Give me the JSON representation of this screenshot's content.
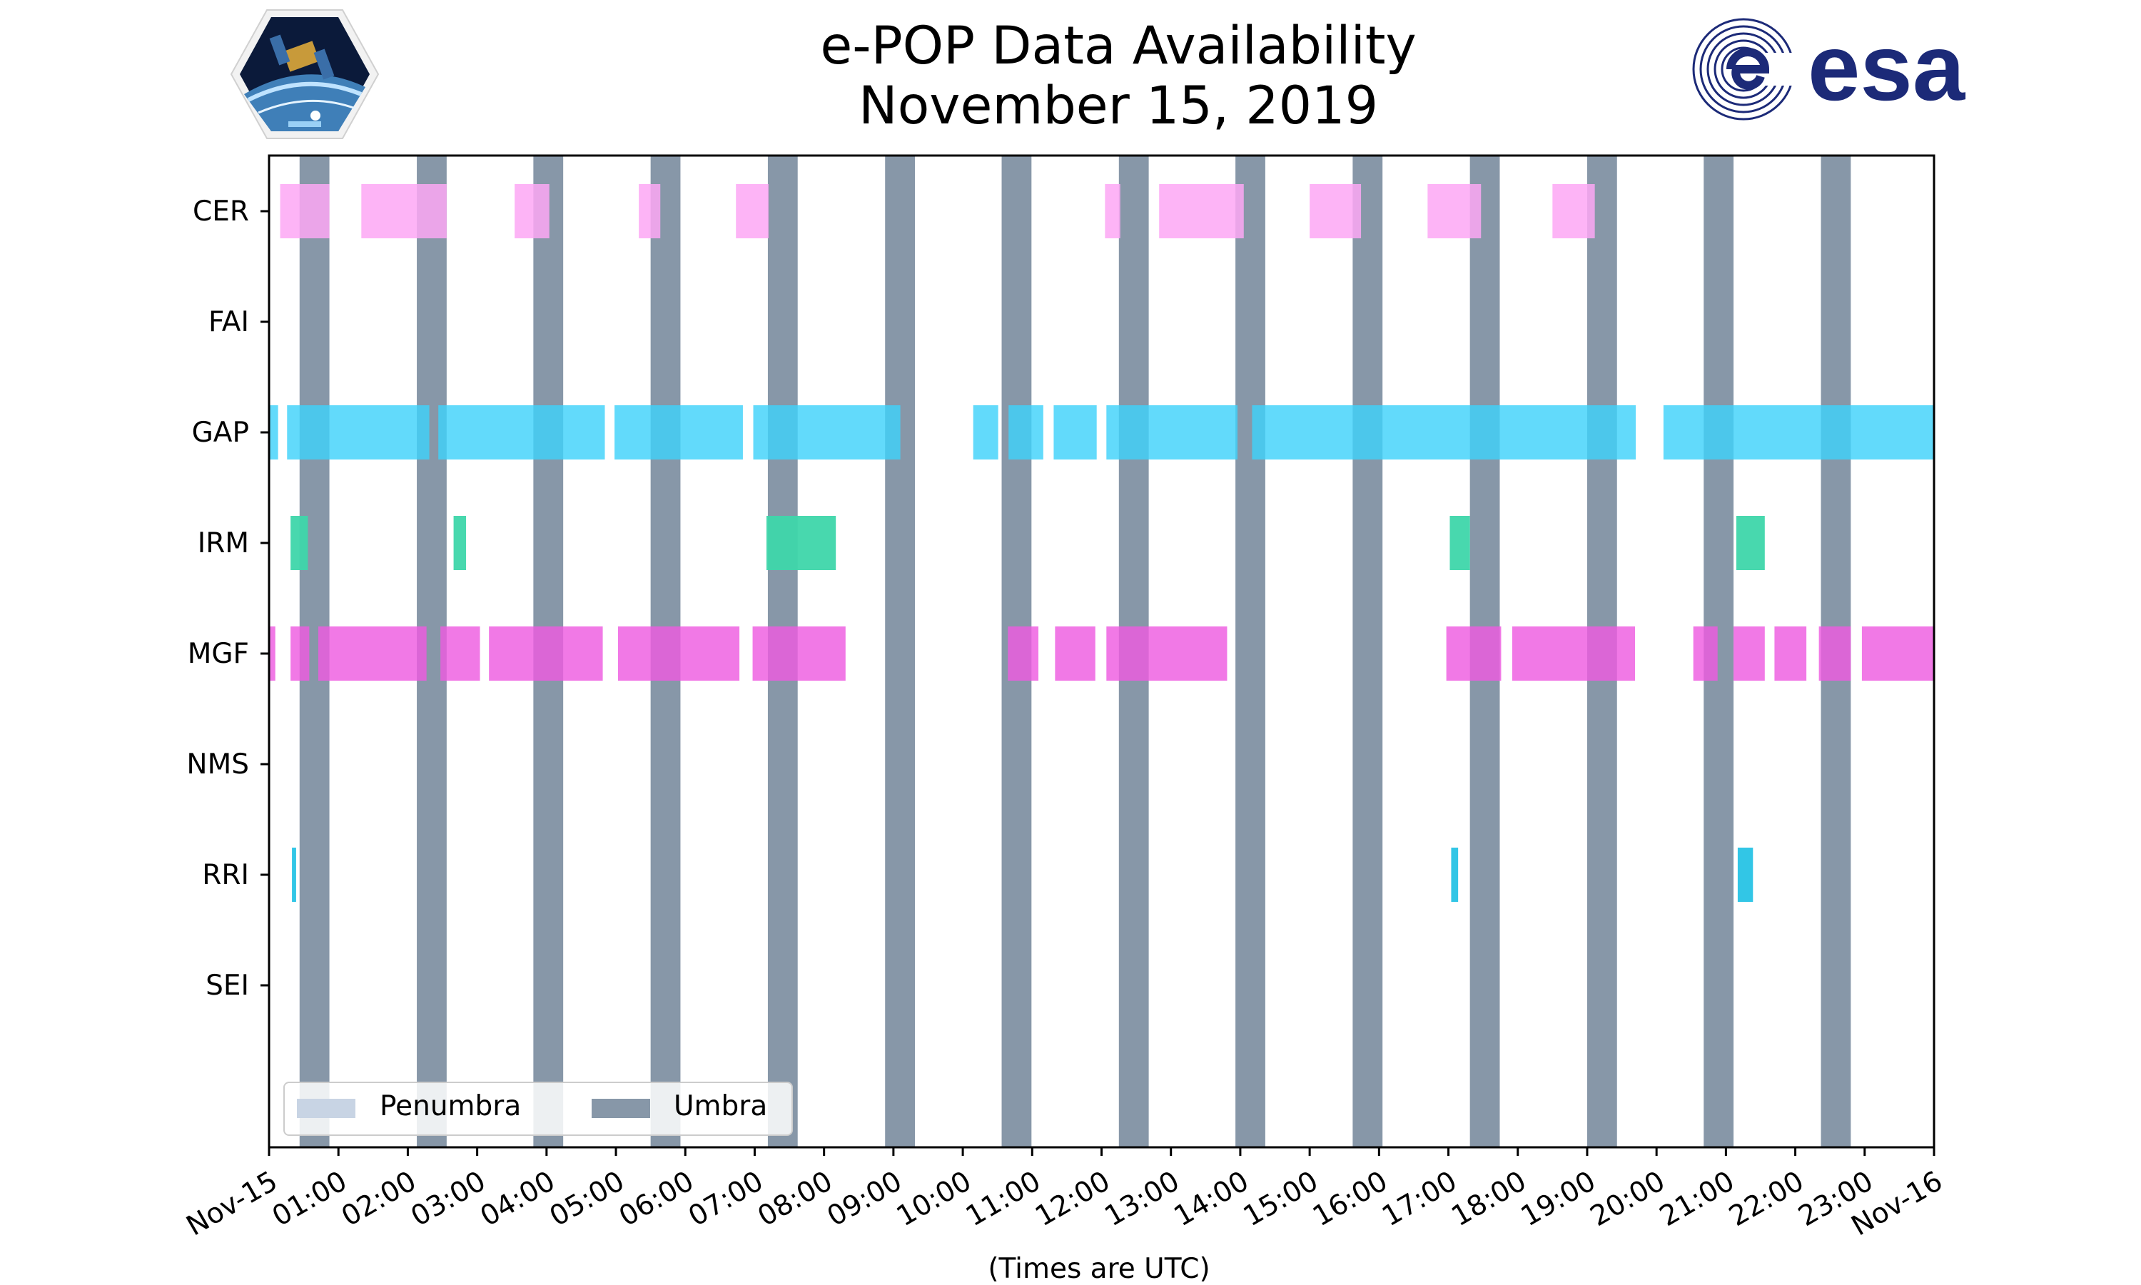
{
  "title_line1": "e-POP Data Availability",
  "title_line2": "November 15, 2019",
  "logos": {
    "left": {
      "name": "CASSIOPE",
      "icon": "cassiope-mission-badge"
    },
    "right": {
      "name": "esa",
      "icon": "esa-logo",
      "color": "#1c2a78"
    }
  },
  "colors": {
    "umbra": "#8797a8",
    "penumbra": "#c8d4e4",
    "CER": "#fda7f4",
    "GAP": "#5fd8f8",
    "GAP_dark": "#40d2fa",
    "IRM": "#3ed6aa",
    "MGF": "#f279e6",
    "MGF_dark": "#ee5ce0",
    "RRI": "#32c6e6"
  },
  "chart_data": {
    "type": "timeline",
    "title": "e-POP Data Availability November 15, 2019",
    "xlabel": "(Times are UTC)",
    "ylabel": "",
    "xlim_hours": [
      0,
      24
    ],
    "x_tick_labels": [
      "Nov-15",
      "01:00",
      "02:00",
      "03:00",
      "04:00",
      "05:00",
      "06:00",
      "07:00",
      "08:00",
      "09:00",
      "10:00",
      "11:00",
      "12:00",
      "13:00",
      "14:00",
      "15:00",
      "16:00",
      "17:00",
      "18:00",
      "19:00",
      "20:00",
      "21:00",
      "22:00",
      "23:00",
      "Nov-16"
    ],
    "instruments": [
      "CER",
      "FAI",
      "GAP",
      "IRM",
      "MGF",
      "NMS",
      "RRI",
      "SEI"
    ],
    "legend": {
      "position": "lower-left",
      "entries": [
        "Penumbra",
        "Umbra"
      ]
    },
    "umbra_intervals": [
      [
        0.44,
        0.87
      ],
      [
        2.13,
        2.56
      ],
      [
        3.81,
        4.24
      ],
      [
        5.5,
        5.93
      ],
      [
        7.19,
        7.62
      ],
      [
        8.88,
        9.31
      ],
      [
        10.56,
        10.99
      ],
      [
        12.25,
        12.68
      ],
      [
        13.93,
        14.36
      ],
      [
        15.62,
        16.05
      ],
      [
        17.31,
        17.74
      ],
      [
        19.0,
        19.43
      ],
      [
        20.68,
        21.11
      ],
      [
        22.37,
        22.8
      ]
    ],
    "series": [
      {
        "name": "CER",
        "intervals": [
          [
            0.16,
            0.87
          ],
          [
            1.33,
            2.56
          ],
          [
            3.54,
            4.04
          ],
          [
            5.33,
            5.64
          ],
          [
            6.73,
            7.2
          ],
          [
            12.05,
            12.27
          ],
          [
            12.83,
            14.05
          ],
          [
            15.0,
            15.74
          ],
          [
            16.7,
            17.47
          ],
          [
            18.5,
            19.11
          ]
        ]
      },
      {
        "name": "FAI",
        "intervals": []
      },
      {
        "name": "GAP",
        "intervals": [
          [
            0.0,
            0.13
          ],
          [
            0.26,
            2.31
          ],
          [
            2.44,
            4.84
          ],
          [
            4.98,
            6.83
          ],
          [
            6.98,
            9.1
          ],
          [
            10.15,
            10.51
          ],
          [
            10.66,
            11.16
          ],
          [
            11.31,
            11.93
          ],
          [
            12.07,
            13.96
          ],
          [
            14.17,
            19.7
          ],
          [
            20.1,
            24.0
          ]
        ]
      },
      {
        "name": "IRM",
        "intervals": [
          [
            0.31,
            0.56
          ],
          [
            2.66,
            2.84
          ],
          [
            7.17,
            8.17
          ],
          [
            17.02,
            17.31
          ],
          [
            21.15,
            21.56
          ]
        ]
      },
      {
        "name": "MGF",
        "intervals": [
          [
            0.0,
            0.09
          ],
          [
            0.31,
            0.58
          ],
          [
            0.71,
            2.27
          ],
          [
            2.47,
            3.04
          ],
          [
            3.17,
            4.81
          ],
          [
            5.03,
            6.78
          ],
          [
            6.97,
            8.31
          ],
          [
            10.65,
            11.09
          ],
          [
            11.33,
            11.91
          ],
          [
            12.07,
            13.81
          ],
          [
            16.97,
            17.76
          ],
          [
            17.92,
            19.69
          ],
          [
            20.53,
            20.88
          ],
          [
            21.11,
            21.56
          ],
          [
            21.7,
            22.16
          ],
          [
            22.34,
            22.8
          ],
          [
            22.96,
            24.0
          ]
        ]
      },
      {
        "name": "NMS",
        "intervals": []
      },
      {
        "name": "RRI",
        "intervals": [
          [
            0.33,
            0.39
          ],
          [
            17.04,
            17.14
          ],
          [
            21.17,
            21.39
          ]
        ]
      },
      {
        "name": "SEI",
        "intervals": []
      }
    ]
  }
}
